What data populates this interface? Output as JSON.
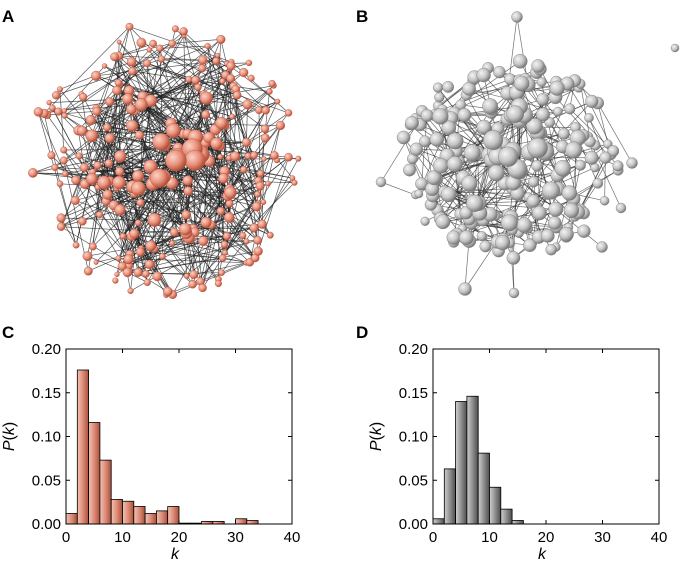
{
  "panels": {
    "a": {
      "letter": "A"
    },
    "b": {
      "letter": "B"
    },
    "c": {
      "letter": "C"
    },
    "d": {
      "letter": "D"
    }
  },
  "colors": {
    "network_a_node": "#e8907a",
    "network_a_node_dark": "#b9533d",
    "network_b_node": "#c8c8c8",
    "network_b_node_dark": "#7a7a7a",
    "bar_c": "#d98470",
    "bar_d": "#8a8a8a"
  },
  "chart_data": [
    {
      "type": "bar",
      "panel": "C",
      "title": "",
      "xlabel": "k",
      "ylabel": "P(k)",
      "xlim": [
        0,
        40
      ],
      "ylim": [
        0,
        0.2
      ],
      "xticks": [
        "0",
        "10",
        "20",
        "30",
        "40"
      ],
      "yticks": [
        "0.00",
        "0.05",
        "0.10",
        "0.15",
        "0.20"
      ],
      "bin_width": 2,
      "x": [
        0,
        2,
        4,
        6,
        8,
        10,
        12,
        14,
        16,
        18,
        20,
        22,
        24,
        26,
        28,
        30,
        32,
        34,
        36,
        38
      ],
      "values": [
        0.012,
        0.176,
        0.116,
        0.073,
        0.028,
        0.026,
        0.02,
        0.012,
        0.015,
        0.02,
        0.001,
        0.001,
        0.003,
        0.003,
        0.0,
        0.006,
        0.004,
        0.0,
        0.0,
        0.0
      ]
    },
    {
      "type": "bar",
      "panel": "D",
      "title": "",
      "xlabel": "k",
      "ylabel": "P(k)",
      "xlim": [
        0,
        40
      ],
      "ylim": [
        0,
        0.2
      ],
      "xticks": [
        "0",
        "10",
        "20",
        "30",
        "40"
      ],
      "yticks": [
        "0.00",
        "0.05",
        "0.10",
        "0.15",
        "0.20"
      ],
      "bin_width": 2,
      "x": [
        0,
        2,
        4,
        6,
        8,
        10,
        12,
        14,
        16,
        18,
        20,
        22,
        24,
        26,
        28,
        30,
        32,
        34,
        36,
        38
      ],
      "values": [
        0.006,
        0.063,
        0.14,
        0.146,
        0.081,
        0.042,
        0.017,
        0.004,
        0.0,
        0.0,
        0.0,
        0.0,
        0.0,
        0.0,
        0.0,
        0.0,
        0.0,
        0.0,
        0.0,
        0.0
      ]
    }
  ]
}
